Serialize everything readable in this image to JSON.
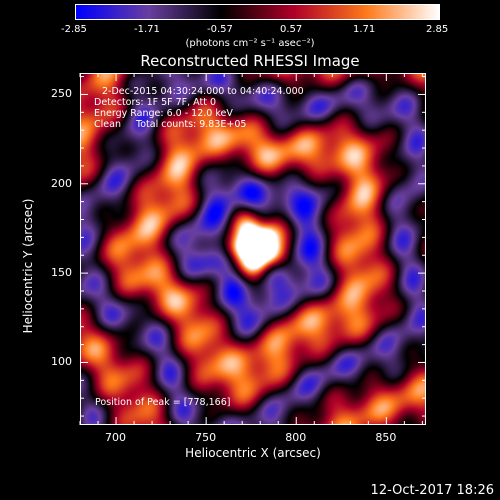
{
  "chart_data": {
    "type": "heatmap",
    "title": "Reconstructed RHESSI Image",
    "xlabel": "Heliocentric X (arcsec)",
    "ylabel": "Heliocentric Y (arcsec)",
    "xlim": [
      680,
      872
    ],
    "ylim": [
      65,
      262
    ],
    "xticks": [
      700,
      750,
      800,
      850
    ],
    "yticks": [
      100,
      150,
      200,
      250
    ],
    "peak_position": [
      778,
      166
    ],
    "colorbar": {
      "min": -2.85,
      "max": 2.85,
      "ticks": [
        "-2.85",
        "-1.71",
        "-0.57",
        "0.57",
        "1.71",
        "2.85"
      ],
      "unit_label": "(photons cm⁻² s⁻¹ asec⁻²)",
      "colormap": [
        "#0000ff",
        "#6a3fa0",
        "#000000",
        "#b0002a",
        "#ff7a1a",
        "#ffffff"
      ]
    },
    "annotations": [
      "2-Dec-2015 04:30:24.000 to 04:40:24.000",
      "Detectors: 1F 5F 7F, Att 0",
      "Energy Range: 6.0 - 12.0 keV",
      "Clean     Total counts: 9.83E+05"
    ],
    "peak_label": "Position of Peak = [778,166]"
  },
  "footer": {
    "date_stamp": "12-Oct-2017 18:26"
  }
}
